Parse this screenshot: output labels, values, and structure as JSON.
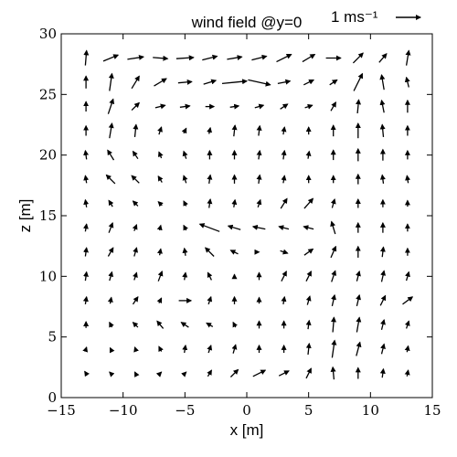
{
  "chart_data": {
    "type": "quiver",
    "title": "wind field @y=0",
    "xlabel": "x [m]",
    "ylabel": "z [m]",
    "xlim": [
      -15,
      15
    ],
    "ylim": [
      0,
      30
    ],
    "xticks": [
      -15,
      -10,
      -5,
      0,
      5,
      10,
      15
    ],
    "yticks": [
      0,
      5,
      10,
      15,
      20,
      25,
      30
    ],
    "xtick_labels": [
      "−15",
      "−10",
      "−5",
      "0",
      "5",
      "10",
      "15"
    ],
    "ytick_labels": [
      "0",
      "5",
      "10",
      "15",
      "20",
      "25",
      "30"
    ],
    "grid": false,
    "key": {
      "label": "1 ms⁻¹",
      "value": 1,
      "units": "m/s"
    },
    "vectors": [
      {
        "x": -13,
        "z": 28,
        "u": 0.05,
        "w": 0.6
      },
      {
        "x": -11,
        "z": 28,
        "u": 0.6,
        "w": 0.25
      },
      {
        "x": -9,
        "z": 28,
        "u": 0.65,
        "w": 0.1
      },
      {
        "x": -7,
        "z": 28,
        "u": 0.6,
        "w": -0.05
      },
      {
        "x": -5,
        "z": 28,
        "u": 0.7,
        "w": 0.05
      },
      {
        "x": -3,
        "z": 28,
        "u": 0.6,
        "w": 0.15
      },
      {
        "x": -1,
        "z": 28,
        "u": 0.6,
        "w": 0.1
      },
      {
        "x": 1,
        "z": 28,
        "u": 0.6,
        "w": 0.15
      },
      {
        "x": 3,
        "z": 28,
        "u": 0.6,
        "w": 0.3
      },
      {
        "x": 5,
        "z": 28,
        "u": 0.5,
        "w": 0.3
      },
      {
        "x": 7,
        "z": 28,
        "u": 0.6,
        "w": 0.0
      },
      {
        "x": 9,
        "z": 28,
        "u": 0.4,
        "w": 0.4
      },
      {
        "x": 11,
        "z": 28,
        "u": 0.3,
        "w": 0.35
      },
      {
        "x": 13,
        "z": 28,
        "u": 0.1,
        "w": 0.6
      },
      {
        "x": -13,
        "z": 26,
        "u": 0.0,
        "w": 0.5
      },
      {
        "x": -11,
        "z": 26,
        "u": 0.1,
        "w": 0.7
      },
      {
        "x": -9,
        "z": 26,
        "u": 0.3,
        "w": 0.5
      },
      {
        "x": -7,
        "z": 26,
        "u": 0.5,
        "w": 0.3
      },
      {
        "x": -5,
        "z": 26,
        "u": 0.55,
        "w": 0.05
      },
      {
        "x": -3,
        "z": 26,
        "u": 0.5,
        "w": 0.15
      },
      {
        "x": -1,
        "z": 26,
        "u": 1.0,
        "w": 0.1
      },
      {
        "x": 1,
        "z": 26,
        "u": 0.9,
        "w": -0.2
      },
      {
        "x": 3,
        "z": 26,
        "u": 0.5,
        "w": 0.1
      },
      {
        "x": 5,
        "z": 26,
        "u": 0.4,
        "w": 0.2
      },
      {
        "x": 7,
        "z": 26,
        "u": 0.3,
        "w": 0.2
      },
      {
        "x": 9,
        "z": 26,
        "u": 0.35,
        "w": 0.7
      },
      {
        "x": 11,
        "z": 26,
        "u": -0.1,
        "w": 0.6
      },
      {
        "x": 13,
        "z": 26,
        "u": -0.1,
        "w": 0.4
      },
      {
        "x": -13,
        "z": 24,
        "u": 0.0,
        "w": 0.4
      },
      {
        "x": -11,
        "z": 24,
        "u": 0.2,
        "w": 0.6
      },
      {
        "x": -9,
        "z": 24,
        "u": 0.3,
        "w": 0.3
      },
      {
        "x": -7,
        "z": 24,
        "u": 0.4,
        "w": 0.1
      },
      {
        "x": -5,
        "z": 24,
        "u": 0.4,
        "w": 0.05
      },
      {
        "x": -3,
        "z": 24,
        "u": 0.35,
        "w": 0.0
      },
      {
        "x": -1,
        "z": 24,
        "u": 0.35,
        "w": 0.05
      },
      {
        "x": 1,
        "z": 24,
        "u": 0.35,
        "w": 0.1
      },
      {
        "x": 3,
        "z": 24,
        "u": 0.3,
        "w": 0.2
      },
      {
        "x": 5,
        "z": 24,
        "u": 0.3,
        "w": 0.1
      },
      {
        "x": 7,
        "z": 24,
        "u": 0.2,
        "w": 0.35
      },
      {
        "x": 9,
        "z": 24,
        "u": 0.05,
        "w": 0.55
      },
      {
        "x": 11,
        "z": 24,
        "u": -0.1,
        "w": 0.5
      },
      {
        "x": 13,
        "z": 24,
        "u": 0.0,
        "w": 0.5
      },
      {
        "x": -13,
        "z": 22,
        "u": 0.0,
        "w": 0.4
      },
      {
        "x": -11,
        "z": 22,
        "u": 0.1,
        "w": 0.6
      },
      {
        "x": -9,
        "z": 22,
        "u": 0.05,
        "w": 0.5
      },
      {
        "x": -7,
        "z": 22,
        "u": 0.1,
        "w": 0.3
      },
      {
        "x": -5,
        "z": 22,
        "u": 0.1,
        "w": 0.2
      },
      {
        "x": -3,
        "z": 22,
        "u": 0.05,
        "w": 0.25
      },
      {
        "x": -1,
        "z": 22,
        "u": 0.05,
        "w": 0.45
      },
      {
        "x": 1,
        "z": 22,
        "u": 0.05,
        "w": 0.4
      },
      {
        "x": 3,
        "z": 22,
        "u": 0.05,
        "w": 0.3
      },
      {
        "x": 5,
        "z": 22,
        "u": 0.0,
        "w": 0.3
      },
      {
        "x": 7,
        "z": 22,
        "u": 0.0,
        "w": 0.45
      },
      {
        "x": 9,
        "z": 22,
        "u": 0.0,
        "w": 0.6
      },
      {
        "x": 11,
        "z": 22,
        "u": -0.05,
        "w": 0.5
      },
      {
        "x": 13,
        "z": 22,
        "u": 0.0,
        "w": 0.4
      },
      {
        "x": -13,
        "z": 20,
        "u": -0.05,
        "w": 0.35
      },
      {
        "x": -11,
        "z": 20,
        "u": -0.25,
        "w": 0.4
      },
      {
        "x": -9,
        "z": 20,
        "u": -0.2,
        "w": 0.3
      },
      {
        "x": -7,
        "z": 20,
        "u": -0.1,
        "w": 0.25
      },
      {
        "x": -5,
        "z": 20,
        "u": -0.1,
        "w": 0.3
      },
      {
        "x": -3,
        "z": 20,
        "u": 0.0,
        "w": 0.35
      },
      {
        "x": -1,
        "z": 20,
        "u": 0.0,
        "w": 0.35
      },
      {
        "x": 1,
        "z": 20,
        "u": 0.05,
        "w": 0.35
      },
      {
        "x": 3,
        "z": 20,
        "u": 0.05,
        "w": 0.35
      },
      {
        "x": 5,
        "z": 20,
        "u": 0.05,
        "w": 0.3
      },
      {
        "x": 7,
        "z": 20,
        "u": 0.0,
        "w": 0.4
      },
      {
        "x": 9,
        "z": 20,
        "u": 0.0,
        "w": 0.5
      },
      {
        "x": 11,
        "z": 20,
        "u": 0.0,
        "w": 0.45
      },
      {
        "x": 13,
        "z": 20,
        "u": 0.0,
        "w": 0.35
      },
      {
        "x": -13,
        "z": 18,
        "u": -0.05,
        "w": 0.3
      },
      {
        "x": -11,
        "z": 18,
        "u": -0.35,
        "w": 0.35
      },
      {
        "x": -9,
        "z": 18,
        "u": -0.3,
        "w": 0.3
      },
      {
        "x": -7,
        "z": 18,
        "u": -0.15,
        "w": 0.25
      },
      {
        "x": -5,
        "z": 18,
        "u": -0.1,
        "w": 0.3
      },
      {
        "x": -3,
        "z": 18,
        "u": 0.05,
        "w": 0.35
      },
      {
        "x": -1,
        "z": 18,
        "u": 0.0,
        "w": 0.35
      },
      {
        "x": 1,
        "z": 18,
        "u": 0.05,
        "w": 0.35
      },
      {
        "x": 3,
        "z": 18,
        "u": 0.05,
        "w": 0.3
      },
      {
        "x": 5,
        "z": 18,
        "u": 0.0,
        "w": 0.3
      },
      {
        "x": 7,
        "z": 18,
        "u": 0.0,
        "w": 0.3
      },
      {
        "x": 9,
        "z": 18,
        "u": 0.0,
        "w": 0.4
      },
      {
        "x": 11,
        "z": 18,
        "u": -0.05,
        "w": 0.35
      },
      {
        "x": 13,
        "z": 18,
        "u": -0.05,
        "w": 0.3
      },
      {
        "x": -13,
        "z": 16,
        "u": -0.05,
        "w": 0.3
      },
      {
        "x": -11,
        "z": 16,
        "u": -0.15,
        "w": 0.25
      },
      {
        "x": -9,
        "z": 16,
        "u": -0.2,
        "w": 0.2
      },
      {
        "x": -7,
        "z": 16,
        "u": -0.15,
        "w": 0.15
      },
      {
        "x": -5,
        "z": 16,
        "u": -0.1,
        "w": 0.2
      },
      {
        "x": -3,
        "z": 16,
        "u": 0.05,
        "w": 0.35
      },
      {
        "x": -1,
        "z": 16,
        "u": 0.05,
        "w": 0.3
      },
      {
        "x": 1,
        "z": 16,
        "u": 0.1,
        "w": 0.3
      },
      {
        "x": 3,
        "z": 16,
        "u": 0.25,
        "w": 0.4
      },
      {
        "x": 5,
        "z": 16,
        "u": 0.35,
        "w": 0.4
      },
      {
        "x": 7,
        "z": 16,
        "u": 0.1,
        "w": 0.35
      },
      {
        "x": 9,
        "z": 16,
        "u": 0.0,
        "w": 0.35
      },
      {
        "x": 11,
        "z": 16,
        "u": 0.0,
        "w": 0.3
      },
      {
        "x": 13,
        "z": 16,
        "u": 0.0,
        "w": 0.25
      },
      {
        "x": -13,
        "z": 14,
        "u": 0.05,
        "w": 0.3
      },
      {
        "x": -11,
        "z": 14,
        "u": 0.15,
        "w": 0.4
      },
      {
        "x": -9,
        "z": 14,
        "u": 0.1,
        "w": 0.25
      },
      {
        "x": -7,
        "z": 14,
        "u": 0.05,
        "w": 0.2
      },
      {
        "x": -5,
        "z": 14,
        "u": -0.1,
        "w": 0.2
      },
      {
        "x": -3,
        "z": 14,
        "u": -0.8,
        "w": 0.3
      },
      {
        "x": -1,
        "z": 14,
        "u": -0.5,
        "w": 0.15
      },
      {
        "x": 1,
        "z": 14,
        "u": -0.5,
        "w": 0.1
      },
      {
        "x": 3,
        "z": 14,
        "u": -0.4,
        "w": 0.1
      },
      {
        "x": 5,
        "z": 14,
        "u": -0.4,
        "w": 0.1
      },
      {
        "x": 7,
        "z": 14,
        "u": -0.15,
        "w": 0.5
      },
      {
        "x": 9,
        "z": 14,
        "u": 0.0,
        "w": 0.4
      },
      {
        "x": 11,
        "z": 14,
        "u": 0.0,
        "w": 0.4
      },
      {
        "x": 13,
        "z": 14,
        "u": 0.0,
        "w": 0.3
      },
      {
        "x": -13,
        "z": 12,
        "u": 0.05,
        "w": 0.35
      },
      {
        "x": -11,
        "z": 12,
        "u": 0.2,
        "w": 0.35
      },
      {
        "x": -9,
        "z": 12,
        "u": 0.1,
        "w": 0.35
      },
      {
        "x": -7,
        "z": 12,
        "u": 0.05,
        "w": 0.25
      },
      {
        "x": -5,
        "z": 12,
        "u": -0.05,
        "w": 0.3
      },
      {
        "x": -3,
        "z": 12,
        "u": -0.35,
        "w": 0.35
      },
      {
        "x": -1,
        "z": 12,
        "u": -0.3,
        "w": 0.15
      },
      {
        "x": 1,
        "z": 12,
        "u": 0.0,
        "w": 0.0
      },
      {
        "x": 3,
        "z": 12,
        "u": 0.3,
        "w": -0.1
      },
      {
        "x": 5,
        "z": 12,
        "u": 0.35,
        "w": 0.25
      },
      {
        "x": 7,
        "z": 12,
        "u": 0.2,
        "w": 0.45
      },
      {
        "x": 9,
        "z": 12,
        "u": 0.0,
        "w": 0.45
      },
      {
        "x": 11,
        "z": 12,
        "u": 0.05,
        "w": 0.4
      },
      {
        "x": 13,
        "z": 12,
        "u": 0.0,
        "w": 0.3
      },
      {
        "x": -13,
        "z": 10,
        "u": 0.05,
        "w": 0.35
      },
      {
        "x": -11,
        "z": 10,
        "u": 0.1,
        "w": 0.35
      },
      {
        "x": -9,
        "z": 10,
        "u": 0.1,
        "w": 0.3
      },
      {
        "x": -7,
        "z": 10,
        "u": 0.15,
        "w": 0.4
      },
      {
        "x": -5,
        "z": 10,
        "u": 0.05,
        "w": 0.3
      },
      {
        "x": -3,
        "z": 10,
        "u": -0.15,
        "w": 0.3
      },
      {
        "x": -1,
        "z": 10,
        "u": 0.0,
        "w": 0.15
      },
      {
        "x": 1,
        "z": 10,
        "u": 0.0,
        "w": 0.3
      },
      {
        "x": 3,
        "z": 10,
        "u": 0.2,
        "w": 0.4
      },
      {
        "x": 5,
        "z": 10,
        "u": 0.2,
        "w": 0.4
      },
      {
        "x": 7,
        "z": 10,
        "u": 0.15,
        "w": 0.45
      },
      {
        "x": 9,
        "z": 10,
        "u": 0.1,
        "w": 0.4
      },
      {
        "x": 11,
        "z": 10,
        "u": 0.1,
        "w": 0.45
      },
      {
        "x": 13,
        "z": 10,
        "u": 0.1,
        "w": 0.35
      },
      {
        "x": -13,
        "z": 8,
        "u": 0.05,
        "w": 0.3
      },
      {
        "x": -11,
        "z": 8,
        "u": 0.05,
        "w": 0.25
      },
      {
        "x": -9,
        "z": 8,
        "u": 0.2,
        "w": 0.3
      },
      {
        "x": -7,
        "z": 8,
        "u": 0.1,
        "w": 0.2
      },
      {
        "x": -5,
        "z": 8,
        "u": 0.5,
        "w": 0.0
      },
      {
        "x": -3,
        "z": 8,
        "u": 0.1,
        "w": 0.3
      },
      {
        "x": -1,
        "z": 8,
        "u": 0.0,
        "w": 0.3
      },
      {
        "x": 1,
        "z": 8,
        "u": 0.0,
        "w": 0.25
      },
      {
        "x": 3,
        "z": 8,
        "u": 0.05,
        "w": 0.3
      },
      {
        "x": 5,
        "z": 8,
        "u": 0.1,
        "w": 0.35
      },
      {
        "x": 7,
        "z": 8,
        "u": 0.1,
        "w": 0.45
      },
      {
        "x": 9,
        "z": 8,
        "u": 0.1,
        "w": 0.45
      },
      {
        "x": 11,
        "z": 8,
        "u": 0.2,
        "w": 0.4
      },
      {
        "x": 13,
        "z": 8,
        "u": 0.4,
        "w": 0.3
      },
      {
        "x": -13,
        "z": 6,
        "u": 0.0,
        "w": 0.25
      },
      {
        "x": -11,
        "z": 6,
        "u": -0.1,
        "w": 0.2
      },
      {
        "x": -9,
        "z": 6,
        "u": -0.2,
        "w": 0.2
      },
      {
        "x": -7,
        "z": 6,
        "u": -0.25,
        "w": 0.3
      },
      {
        "x": -5,
        "z": 6,
        "u": -0.3,
        "w": 0.2
      },
      {
        "x": -3,
        "z": 6,
        "u": -0.25,
        "w": 0.15
      },
      {
        "x": -1,
        "z": 6,
        "u": -0.1,
        "w": 0.2
      },
      {
        "x": 1,
        "z": 6,
        "u": 0.0,
        "w": 0.3
      },
      {
        "x": 3,
        "z": 6,
        "u": 0.0,
        "w": 0.3
      },
      {
        "x": 5,
        "z": 6,
        "u": 0.05,
        "w": 0.35
      },
      {
        "x": 7,
        "z": 6,
        "u": 0.05,
        "w": 0.6
      },
      {
        "x": 9,
        "z": 6,
        "u": 0.1,
        "w": 0.6
      },
      {
        "x": 11,
        "z": 6,
        "u": 0.1,
        "w": 0.4
      },
      {
        "x": 13,
        "z": 6,
        "u": 0.1,
        "w": 0.3
      },
      {
        "x": -13,
        "z": 4,
        "u": 0.05,
        "w": 0.15
      },
      {
        "x": -11,
        "z": 4,
        "u": -0.05,
        "w": 0.1
      },
      {
        "x": -9,
        "z": 4,
        "u": -0.05,
        "w": 0.15
      },
      {
        "x": -7,
        "z": 4,
        "u": -0.1,
        "w": 0.2
      },
      {
        "x": -5,
        "z": 4,
        "u": 0.05,
        "w": 0.3
      },
      {
        "x": -3,
        "z": 4,
        "u": 0.1,
        "w": 0.3
      },
      {
        "x": -1,
        "z": 4,
        "u": 0.1,
        "w": 0.35
      },
      {
        "x": 1,
        "z": 4,
        "u": 0.0,
        "w": 0.3
      },
      {
        "x": 3,
        "z": 4,
        "u": 0.0,
        "w": 0.3
      },
      {
        "x": 5,
        "z": 4,
        "u": 0.05,
        "w": 0.45
      },
      {
        "x": 7,
        "z": 4,
        "u": 0.1,
        "w": 0.7
      },
      {
        "x": 9,
        "z": 4,
        "u": 0.15,
        "w": 0.55
      },
      {
        "x": 11,
        "z": 4,
        "u": 0.1,
        "w": 0.4
      },
      {
        "x": 13,
        "z": 4,
        "u": 0.05,
        "w": 0.25
      },
      {
        "x": -13,
        "z": 2,
        "u": -0.1,
        "w": 0.15
      },
      {
        "x": -11,
        "z": 2,
        "u": -0.1,
        "w": 0.1
      },
      {
        "x": -9,
        "z": 2,
        "u": -0.05,
        "w": 0.1
      },
      {
        "x": -7,
        "z": 2,
        "u": 0.1,
        "w": 0.1
      },
      {
        "x": -5,
        "z": 2,
        "u": 0.1,
        "w": 0.1
      },
      {
        "x": -3,
        "z": 2,
        "u": 0.15,
        "w": 0.25
      },
      {
        "x": -1,
        "z": 2,
        "u": 0.3,
        "w": 0.3
      },
      {
        "x": 1,
        "z": 2,
        "u": 0.5,
        "w": 0.25
      },
      {
        "x": 3,
        "z": 2,
        "u": 0.4,
        "w": 0.2
      },
      {
        "x": 5,
        "z": 2,
        "u": 0.2,
        "w": 0.4
      },
      {
        "x": 7,
        "z": 2,
        "u": -0.05,
        "w": 0.5
      },
      {
        "x": 9,
        "z": 2,
        "u": 0.0,
        "w": 0.45
      },
      {
        "x": 11,
        "z": 2,
        "u": 0.05,
        "w": 0.35
      },
      {
        "x": 13,
        "z": 2,
        "u": 0.05,
        "w": 0.25
      }
    ]
  }
}
